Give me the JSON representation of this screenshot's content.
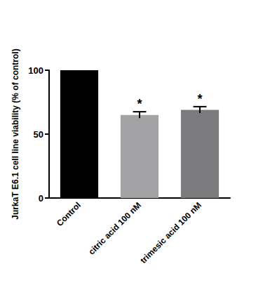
{
  "chart_data": {
    "type": "bar",
    "y_label": "JurkaT E6.1 cell line viability (% of control)",
    "categories": [
      "Control",
      "citric acid 100 nM",
      "trimesic acid 100 nM"
    ],
    "values": [
      100,
      65,
      69
    ],
    "errors": [
      0,
      2.5,
      2.5
    ],
    "annotations": [
      null,
      "*",
      "*"
    ],
    "colors": [
      "#000000",
      "#a3a3a6",
      "#7b7b7e"
    ],
    "ylim": [
      0,
      100
    ],
    "yticks": [
      0,
      50,
      100
    ],
    "grid": false
  }
}
